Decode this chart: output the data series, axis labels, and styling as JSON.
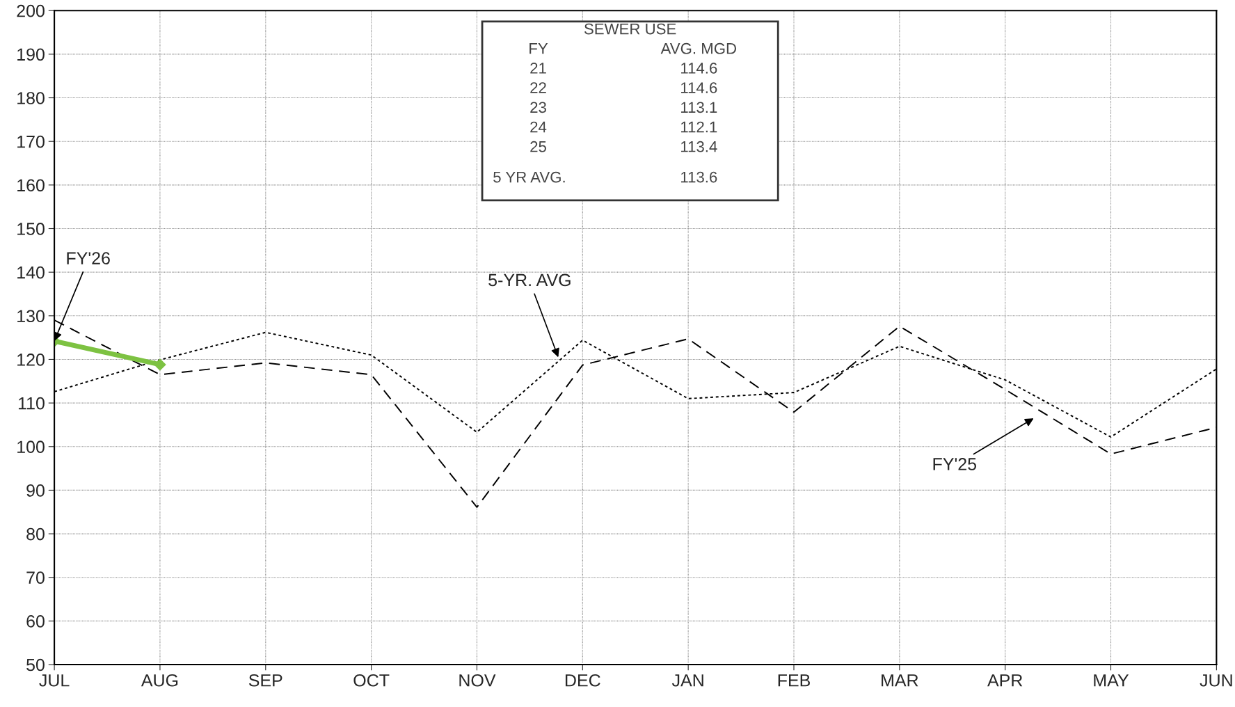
{
  "chart_data": {
    "type": "line",
    "categories": [
      "JUL",
      "AUG",
      "SEP",
      "OCT",
      "NOV",
      "DEC",
      "JAN",
      "FEB",
      "MAR",
      "APR",
      "MAY",
      "JUN"
    ],
    "series": [
      {
        "color": "#000000",
        "line_style": "dotted",
        "values": [
          112.6,
          119.9,
          126.2,
          121.0,
          103.3,
          124.4,
          111.0,
          112.4,
          123.0,
          115.3,
          102.2,
          117.8
        ]
      },
      {
        "color": "#000000",
        "line_style": "dashed",
        "values": [
          129.0,
          116.5,
          119.2,
          116.5,
          86.1,
          118.7,
          124.7,
          107.9,
          127.6,
          113.1,
          98.3,
          104.4
        ]
      },
      {
        "color": "#7dc242",
        "line_style": "solid",
        "marker": "diamond",
        "values": [
          124.2,
          118.8,
          null,
          null,
          null,
          null,
          null,
          null,
          null,
          null,
          null,
          null
        ]
      }
    ],
    "ylim": [
      50,
      200
    ],
    "yticks": [
      50,
      60,
      70,
      80,
      90,
      100,
      110,
      120,
      130,
      140,
      150,
      160,
      170,
      180,
      190,
      200
    ],
    "grid": true,
    "legend": false,
    "annotations": [
      {
        "text": "FY'26",
        "x": "JUL",
        "y": 124.2
      },
      "5-YR. AVG",
      "FY'25",
      "SEWER USE",
      "FY",
      "AVG. MGD",
      "21",
      "114.6",
      "22",
      "114.6",
      "23",
      "113.1",
      "24",
      "112.1",
      "25",
      "113.4",
      "5 YR AVG.",
      "113.6"
    ]
  }
}
